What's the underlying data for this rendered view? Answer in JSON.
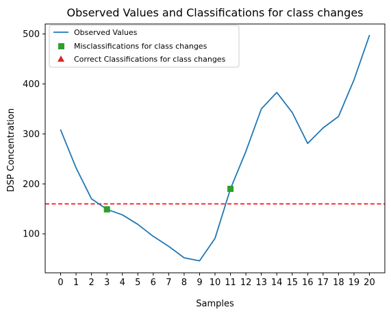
{
  "chart_data": {
    "type": "line",
    "title": "Observed Values and Classifications for class changes",
    "xlabel": "Samples",
    "ylabel": "DSP Concentration",
    "xlim": [
      -1,
      21
    ],
    "ylim": [
      22,
      520
    ],
    "x_ticks": [
      0,
      1,
      2,
      3,
      4,
      5,
      6,
      7,
      8,
      9,
      10,
      11,
      12,
      13,
      14,
      15,
      16,
      17,
      18,
      19,
      20
    ],
    "y_ticks": [
      100,
      200,
      300,
      400,
      500
    ],
    "grid": false,
    "legend_position": "upper-left",
    "series": [
      {
        "name": "Observed Values",
        "type": "line",
        "color": "#1f77b4",
        "x": [
          0,
          1,
          2,
          3,
          4,
          5,
          6,
          7,
          8,
          9,
          10,
          11,
          12,
          13,
          14,
          15,
          16,
          17,
          18,
          19,
          20
        ],
        "values": [
          308,
          232,
          170,
          149,
          138,
          119,
          95,
          75,
          52,
          46,
          91,
          190,
          265,
          350,
          383,
          343,
          281,
          312,
          335,
          408,
          497
        ]
      },
      {
        "name": "Misclassifications for class changes",
        "type": "scatter",
        "marker": "square",
        "color": "#2ca02c",
        "x": [
          3,
          11
        ],
        "values": [
          149,
          190
        ]
      },
      {
        "name": "Correct Classifications for class changes",
        "type": "scatter",
        "marker": "triangle",
        "color": "#d62728",
        "x": [],
        "values": []
      }
    ],
    "threshold": {
      "value": 160,
      "color": "#ff0000",
      "style": "dashed"
    }
  }
}
